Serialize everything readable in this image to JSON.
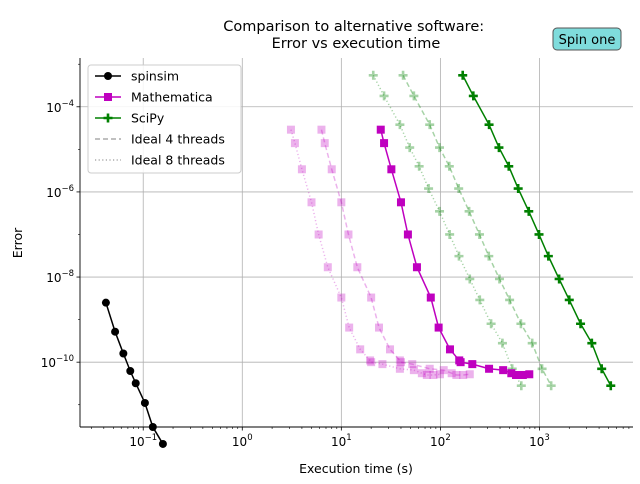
{
  "chart_data": {
    "type": "line",
    "title": "Comparison to alternative software:\nError vs execution time",
    "title_lines": [
      "Comparison to alternative software:",
      "Error vs execution time"
    ],
    "badge": "Spin one",
    "xlabel": "Execution time (s)",
    "ylabel": "Error",
    "xscale": "log",
    "yscale": "log",
    "xlim": [
      0.023,
      8800
    ],
    "ylim": [
      3e-12,
      0.0014
    ],
    "grid": "major",
    "legend_position": "top-left",
    "x_ticks": [
      {
        "value": 0.1,
        "base": "10",
        "exp": "−1"
      },
      {
        "value": 1,
        "base": "10",
        "exp": "0"
      },
      {
        "value": 10,
        "base": "10",
        "exp": "1"
      },
      {
        "value": 100,
        "base": "10",
        "exp": "2"
      },
      {
        "value": 1000,
        "base": "10",
        "exp": "3"
      }
    ],
    "y_ticks": [
      {
        "value": 1e-10,
        "base": "10",
        "exp": "−10"
      },
      {
        "value": 1e-08,
        "base": "10",
        "exp": "−8"
      },
      {
        "value": 1e-06,
        "base": "10",
        "exp": "−6"
      },
      {
        "value": 0.0001,
        "base": "10",
        "exp": "−4"
      }
    ],
    "legend": [
      {
        "label": "spinsim",
        "color": "#000000",
        "marker": "circle",
        "dash": "solid"
      },
      {
        "label": "Mathematica",
        "color": "#bf00bf",
        "marker": "square",
        "dash": "solid"
      },
      {
        "label": "SciPy",
        "color": "#008000",
        "marker": "plus",
        "dash": "solid"
      },
      {
        "label": "Ideal 4 threads",
        "color": "#808080",
        "marker": "none",
        "dash": "dashed"
      },
      {
        "label": "Ideal 8 threads",
        "color": "#808080",
        "marker": "none",
        "dash": "dotted"
      }
    ],
    "series": [
      {
        "name": "spinsim",
        "color": "#000000",
        "marker": "circle",
        "dash": "solid",
        "alpha": 1,
        "x": [
          0.042,
          0.052,
          0.063,
          0.074,
          0.084,
          0.104,
          0.125,
          0.158
        ],
        "y": [
          2.5e-09,
          5.2e-10,
          1.6e-10,
          6.2e-11,
          3.2e-11,
          1.1e-11,
          3e-12,
          1.2e-12
        ]
      },
      {
        "name": "Mathematica",
        "color": "#bf00bf",
        "marker": "square",
        "dash": "solid",
        "alpha": 1,
        "x": [
          25,
          27,
          32,
          40,
          47,
          58,
          80,
          96,
          125,
          155,
          160,
          210,
          310,
          430,
          520,
          580,
          680,
          790
        ],
        "y": [
          2.9e-05,
          1.4e-05,
          3.4e-06,
          5.7e-07,
          1e-07,
          1.7e-08,
          3.3e-09,
          6.5e-10,
          2e-10,
          1.1e-10,
          1e-10,
          9e-11,
          7e-11,
          6.5e-11,
          5.5e-11,
          5e-11,
          5e-11,
          5.2e-11
        ]
      },
      {
        "name": "SciPy",
        "color": "#008000",
        "marker": "plus",
        "dash": "solid",
        "alpha": 1,
        "x": [
          168,
          215,
          310,
          390,
          490,
          610,
          780,
          990,
          1230,
          1580,
          2000,
          2600,
          3380,
          4250,
          5250
        ],
        "y": [
          0.00055,
          0.00018,
          3.8e-05,
          1.1e-05,
          4e-06,
          1.2e-06,
          3.5e-07,
          1e-07,
          3.1e-08,
          9e-09,
          2.9e-09,
          8e-10,
          2.8e-10,
          7e-11,
          2.8e-11
        ]
      },
      {
        "name": "Mathematica (ideal 4 threads)",
        "color": "#bf00bf",
        "marker": "square",
        "dash": "dashed",
        "alpha": 0.3,
        "x": [
          6.3,
          6.8,
          8.0,
          10.0,
          11.8,
          14.5,
          20.0,
          24.0,
          31.0,
          39.0,
          40.0,
          52.0,
          78.0,
          108.0,
          130.0,
          145.0,
          170.0,
          198.0
        ],
        "y": [
          2.9e-05,
          1.4e-05,
          3.4e-06,
          5.7e-07,
          1e-07,
          1.7e-08,
          3.3e-09,
          6.5e-10,
          2e-10,
          1.1e-10,
          1e-10,
          9e-11,
          7e-11,
          6.5e-11,
          5.5e-11,
          5e-11,
          5e-11,
          5.2e-11
        ]
      },
      {
        "name": "Mathematica (ideal 8 threads)",
        "color": "#bf00bf",
        "marker": "square",
        "dash": "dotted",
        "alpha": 0.3,
        "x": [
          3.1,
          3.4,
          4.0,
          5.0,
          5.9,
          7.3,
          10.0,
          12.0,
          15.5,
          19.5,
          20.0,
          26.0,
          39.0,
          54.0,
          65.0,
          73.0,
          85.0,
          99.0
        ],
        "y": [
          2.9e-05,
          1.4e-05,
          3.4e-06,
          5.7e-07,
          1e-07,
          1.7e-08,
          3.3e-09,
          6.5e-10,
          2e-10,
          1.1e-10,
          1e-10,
          9e-11,
          7e-11,
          6.5e-11,
          5.5e-11,
          5e-11,
          5e-11,
          5.2e-11
        ]
      },
      {
        "name": "SciPy (ideal 4 threads)",
        "color": "#008000",
        "marker": "plus",
        "dash": "dashed",
        "alpha": 0.35,
        "x": [
          42,
          54,
          78,
          98,
          123,
          153,
          195,
          248,
          308,
          395,
          500,
          650,
          845,
          1063,
          1313
        ],
        "y": [
          0.00055,
          0.00018,
          3.8e-05,
          1.1e-05,
          4e-06,
          1.2e-06,
          3.5e-07,
          1e-07,
          3.1e-08,
          9e-09,
          2.9e-09,
          8e-10,
          2.8e-10,
          7e-11,
          2.8e-11
        ]
      },
      {
        "name": "SciPy (ideal 8 threads)",
        "color": "#008000",
        "marker": "plus",
        "dash": "dotted",
        "alpha": 0.35,
        "x": [
          21,
          27,
          39,
          49,
          61,
          76,
          98,
          124,
          154,
          198,
          250,
          325,
          423,
          531,
          656
        ],
        "y": [
          0.00055,
          0.00018,
          3.8e-05,
          1.1e-05,
          4e-06,
          1.2e-06,
          3.5e-07,
          1e-07,
          3.1e-08,
          9e-09,
          2.9e-09,
          8e-10,
          2.8e-10,
          7e-11,
          2.8e-11
        ]
      }
    ]
  }
}
